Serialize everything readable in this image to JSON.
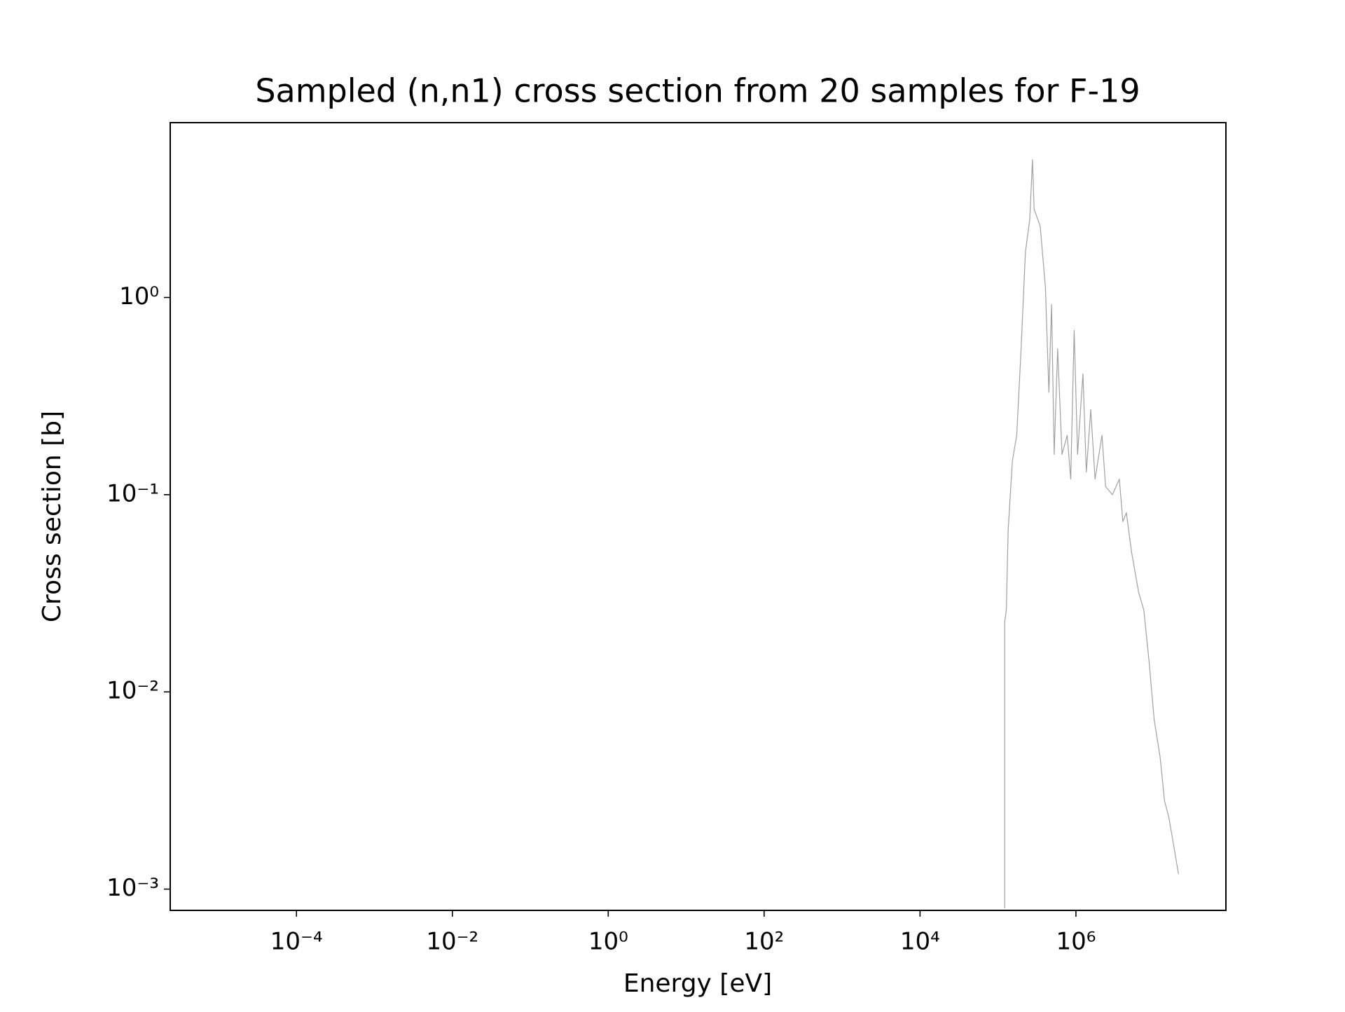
{
  "chart_data": {
    "type": "line",
    "title": "Sampled (n,n1) cross section from 20 samples for F-19",
    "xlabel": "Energy [eV]",
    "ylabel": "Cross section [b]",
    "xscale": "log",
    "yscale": "log",
    "xlim": [
      2.4e-06,
      84000000.0
    ],
    "ylim": [
      0.00078,
      7.7
    ],
    "xticks": [
      {
        "value": 0.0001,
        "label": "10⁻⁴"
      },
      {
        "value": 0.01,
        "label": "10⁻²"
      },
      {
        "value": 1,
        "label": "10⁰"
      },
      {
        "value": 100,
        "label": "10²"
      },
      {
        "value": 10000,
        "label": "10⁴"
      },
      {
        "value": 1000000,
        "label": "10⁶"
      }
    ],
    "yticks": [
      {
        "value": 0.001,
        "label": "10⁻³"
      },
      {
        "value": 0.01,
        "label": "10⁻²"
      },
      {
        "value": 0.1,
        "label": "10⁻¹"
      },
      {
        "value": 1,
        "label": "10⁰"
      }
    ],
    "grid": false,
    "x": [
      122000,
      122000,
      128000,
      135000,
      153000,
      174000,
      198000,
      225000,
      256000,
      277000,
      291000,
      348000,
      406000,
      450000,
      487000,
      526000,
      583000,
      663000,
      773000,
      857000,
      950000,
      1050000,
      1230000,
      1360000,
      1550000,
      1760000,
      2160000,
      2400000,
      2940000,
      3610000,
      4000000,
      4440000,
      5180000,
      6370000,
      7430000,
      8660000,
      10100000,
      12000000,
      13700000,
      15600000,
      17800000,
      20700000
    ],
    "series": [
      {
        "name": "F-19",
        "color": "#a0a0a0",
        "values": [
          0.0008,
          0.0226,
          0.026,
          0.066,
          0.148,
          0.2,
          0.55,
          1.7,
          2.5,
          5.0,
          2.8,
          2.3,
          1.13,
          0.33,
          0.92,
          0.16,
          0.55,
          0.16,
          0.2,
          0.12,
          0.68,
          0.16,
          0.41,
          0.13,
          0.27,
          0.12,
          0.2,
          0.11,
          0.1,
          0.12,
          0.073,
          0.081,
          0.051,
          0.032,
          0.026,
          0.0144,
          0.0072,
          0.0047,
          0.0028,
          0.0023,
          0.0017,
          0.00119
        ]
      }
    ]
  }
}
